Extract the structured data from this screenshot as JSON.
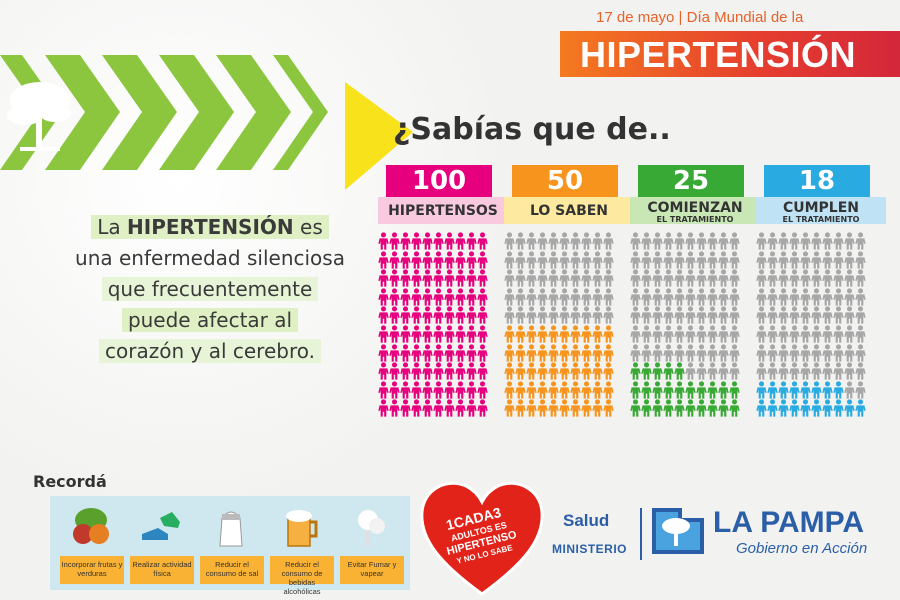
{
  "header": {
    "date_line": "17 de mayo | Día Mundial de la",
    "title": "HIPERTENSIÓN"
  },
  "question": "¿Sabías que de..",
  "statement": {
    "pre": "La ",
    "bold": "HIPERTENSIÓN",
    "post": " es",
    "line2": "una enfermedad silenciosa",
    "line3": "que frecuentemente",
    "line4": "puede  afectar al",
    "line5": "corazón y al cerebro."
  },
  "colors": {
    "inactive": "#a7a7a7",
    "orange_accent": "#f47a20",
    "red_accent": "#e53d2f",
    "chevron_green": "#8cc63f",
    "brand_blue": "#2a5fa8"
  },
  "chart_data": {
    "type": "pictogram",
    "total": 100,
    "columns": [
      {
        "value": "100",
        "count": 100,
        "label": "HIPERTENSOS",
        "sublabel": "",
        "color": "#e6007e",
        "box_color": "#e6007e",
        "label_bg": "#f9c9df"
      },
      {
        "value": "50",
        "count": 50,
        "label": "LO SABEN",
        "sublabel": "",
        "color": "#f7941d",
        "box_color": "#f7941d",
        "label_bg": "#fde9a0"
      },
      {
        "value": "25",
        "count": 25,
        "label": "COMIENZAN",
        "sublabel": "EL TRATAMIENTO",
        "color": "#39a935",
        "box_color": "#39a935",
        "label_bg": "#c9e7b5"
      },
      {
        "value": "18",
        "count": 18,
        "label": "CUMPLEN",
        "sublabel": "EL TRATAMIENTO",
        "color": "#29abe2",
        "box_color": "#29abe2",
        "label_bg": "#bfe3f4"
      }
    ]
  },
  "reminder": {
    "title": "Recordá",
    "tips": [
      {
        "icon": "fruit-vegetables-icon",
        "text": "Incorporar frutas y verduras"
      },
      {
        "icon": "sneakers-icon",
        "text": "Realizar actividad física"
      },
      {
        "icon": "salt-shaker-icon",
        "text": "Reducir el consumo de sal"
      },
      {
        "icon": "beer-mug-icon",
        "text": "Reducir el consumo de bebidas alcohólicas"
      },
      {
        "icon": "smoke-icon",
        "text": "Evitar Fumar y vapear"
      }
    ]
  },
  "heart": {
    "line1": "1CADA3",
    "line2": "ADULTOS ES",
    "line3": "HIPERTENSO",
    "line4": "Y NO LO SABE"
  },
  "logos": {
    "salud": "Salud",
    "ministerio": "MINISTERIO",
    "la_pampa": "LA PAMPA",
    "gobierno": "Gobierno en Acción"
  }
}
